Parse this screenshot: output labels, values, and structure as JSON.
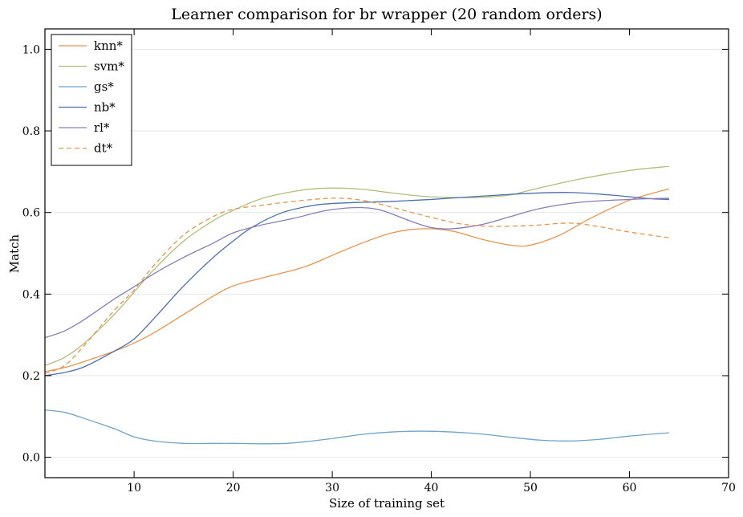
{
  "chart_data": {
    "type": "line",
    "title": "Learner comparison for br wrapper (20 random orders)",
    "xlabel": "Size of training set",
    "ylabel": "Match",
    "xlim": [
      1,
      70
    ],
    "ylim": [
      -0.05,
      1.05
    ],
    "xticks": [
      10,
      20,
      30,
      40,
      50,
      60,
      70
    ],
    "yticks": [
      0.0,
      0.2,
      0.4,
      0.6,
      0.8,
      1.0
    ],
    "grid": "horizontal",
    "legend_position": "top-left",
    "series": [
      {
        "name": "knn*",
        "color": "#e8954e",
        "dash": false,
        "x": [
          1,
          3,
          5,
          8,
          10,
          12,
          15,
          18,
          20,
          23,
          27,
          30,
          33,
          36,
          39,
          42,
          45,
          48,
          50,
          53,
          56,
          60,
          64
        ],
        "y": [
          0.21,
          0.22,
          0.235,
          0.26,
          0.28,
          0.305,
          0.35,
          0.395,
          0.42,
          0.44,
          0.465,
          0.495,
          0.525,
          0.55,
          0.56,
          0.555,
          0.535,
          0.52,
          0.52,
          0.545,
          0.585,
          0.63,
          0.658
        ]
      },
      {
        "name": "svm*",
        "color": "#aebf7b",
        "dash": false,
        "x": [
          1,
          3,
          5,
          8,
          10,
          12,
          15,
          18,
          20,
          23,
          27,
          30,
          33,
          36,
          39,
          42,
          45,
          48,
          50,
          55,
          60,
          64
        ],
        "y": [
          0.225,
          0.245,
          0.28,
          0.35,
          0.405,
          0.46,
          0.53,
          0.58,
          0.605,
          0.635,
          0.655,
          0.66,
          0.657,
          0.648,
          0.64,
          0.637,
          0.637,
          0.643,
          0.655,
          0.682,
          0.703,
          0.713
        ]
      },
      {
        "name": "gs*",
        "color": "#6fa3c9",
        "dash": false,
        "x": [
          1,
          3,
          5,
          8,
          10,
          12,
          15,
          18,
          20,
          23,
          26,
          30,
          33,
          36,
          39,
          42,
          45,
          48,
          51,
          54,
          57,
          60,
          64
        ],
        "y": [
          0.116,
          0.11,
          0.095,
          0.07,
          0.05,
          0.04,
          0.034,
          0.034,
          0.034,
          0.033,
          0.035,
          0.046,
          0.056,
          0.062,
          0.064,
          0.062,
          0.057,
          0.049,
          0.042,
          0.04,
          0.044,
          0.052,
          0.06
        ]
      },
      {
        "name": "nb*",
        "color": "#4c6faf",
        "dash": false,
        "x": [
          1,
          3,
          5,
          8,
          10,
          12,
          15,
          18,
          20,
          22,
          25,
          28,
          30,
          33,
          36,
          40,
          45,
          50,
          54,
          58,
          62,
          64
        ],
        "y": [
          0.2,
          0.208,
          0.222,
          0.26,
          0.29,
          0.34,
          0.42,
          0.49,
          0.53,
          0.565,
          0.6,
          0.617,
          0.622,
          0.625,
          0.627,
          0.632,
          0.64,
          0.647,
          0.649,
          0.643,
          0.634,
          0.632
        ]
      },
      {
        "name": "rl*",
        "color": "#8a7bbb",
        "dash": false,
        "x": [
          1,
          3,
          5,
          8,
          10,
          12,
          15,
          18,
          20,
          23,
          26,
          29,
          31,
          33,
          35,
          38,
          40,
          42,
          45,
          48,
          51,
          55,
          60,
          64
        ],
        "y": [
          0.293,
          0.31,
          0.338,
          0.388,
          0.418,
          0.45,
          0.49,
          0.525,
          0.55,
          0.57,
          0.585,
          0.603,
          0.61,
          0.612,
          0.605,
          0.578,
          0.563,
          0.56,
          0.57,
          0.59,
          0.61,
          0.625,
          0.632,
          0.635
        ]
      },
      {
        "name": "dt*",
        "color": "#e8954e",
        "dash": true,
        "x": [
          1,
          3,
          5,
          8,
          10,
          12,
          15,
          18,
          20,
          23,
          26,
          30,
          33,
          36,
          40,
          43,
          46,
          50,
          54,
          57,
          60,
          64
        ],
        "y": [
          0.205,
          0.225,
          0.275,
          0.36,
          0.41,
          0.47,
          0.545,
          0.59,
          0.608,
          0.618,
          0.627,
          0.635,
          0.63,
          0.613,
          0.588,
          0.572,
          0.566,
          0.568,
          0.574,
          0.565,
          0.552,
          0.538
        ]
      }
    ]
  }
}
